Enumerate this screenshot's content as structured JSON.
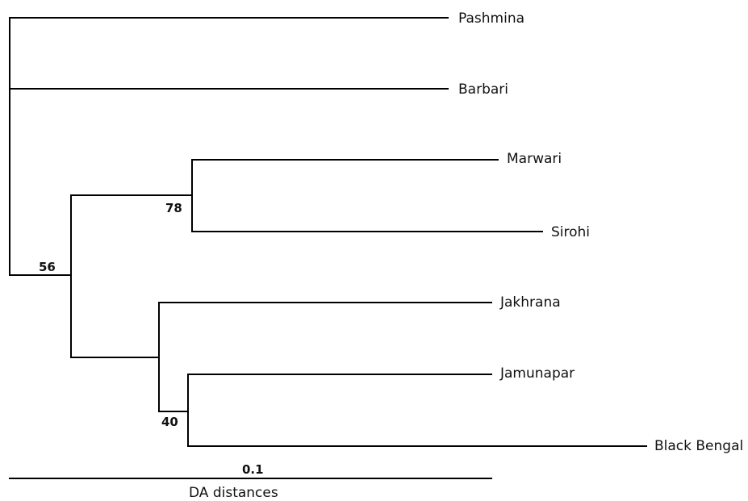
{
  "tree": {
    "leaves": [
      {
        "id": "pashmina",
        "label": "Pashmina"
      },
      {
        "id": "barbari",
        "label": "Barbari"
      },
      {
        "id": "marwari",
        "label": "Marwari"
      },
      {
        "id": "sirohi",
        "label": "Sirohi"
      },
      {
        "id": "jakhrana",
        "label": "Jakhrana"
      },
      {
        "id": "jamunapar",
        "label": "Jamunapar"
      },
      {
        "id": "black_bengal",
        "label": "Black Bengal"
      }
    ],
    "bootstrap": {
      "node_56": "56",
      "node_78": "78",
      "node_40": "40"
    }
  },
  "scale_bar": {
    "value": "0.1",
    "title": "DA distances"
  },
  "colors": {
    "line": "#000000",
    "text": "#111111",
    "background": "#ffffff"
  }
}
